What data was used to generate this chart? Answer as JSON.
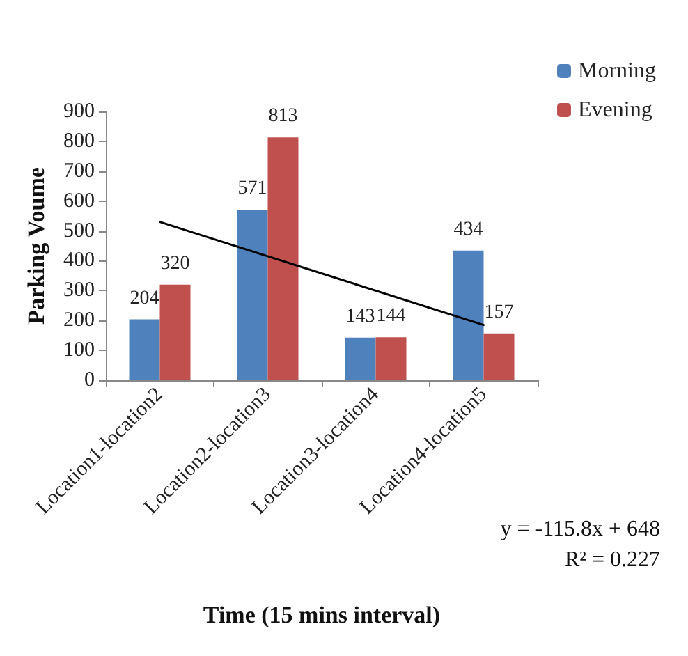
{
  "chart_data": {
    "type": "bar",
    "xlabel": "Time (15 mins interval)",
    "ylabel": "Parking Voume",
    "categories": [
      "Location1-location2",
      "Location2-location3",
      "Location3-location4",
      "Location4-location5"
    ],
    "series": [
      {
        "name": "Morning",
        "color": "#4f81bd",
        "values": [
          204,
          571,
          143,
          434
        ],
        "value_labels": [
          "204",
          "571",
          "143",
          "434"
        ]
      },
      {
        "name": "Evening",
        "color": "#c0504d",
        "values": [
          320,
          813,
          144,
          157
        ],
        "value_labels": [
          "320",
          "813",
          "144",
          "157"
        ]
      },
      {
        "type": "line",
        "color": "#000000",
        "x": [
          "Location1-location2",
          "Location4-location5"
        ],
        "values": [
          530,
          185
        ]
      }
    ],
    "ylim": [
      0,
      900
    ],
    "yticks": [
      0,
      100,
      200,
      300,
      400,
      500,
      600,
      700,
      800,
      900
    ],
    "legend": "top right",
    "grid": false,
    "annotations": [
      "y = -115.8x + 648",
      "R² = 0.227"
    ]
  }
}
